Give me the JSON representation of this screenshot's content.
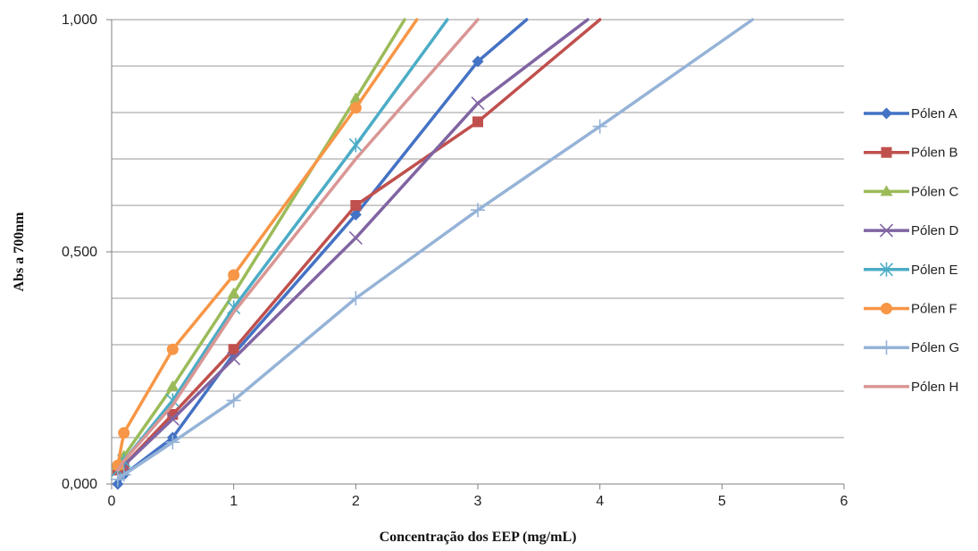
{
  "chart_data": {
    "type": "line",
    "title": "",
    "xlabel": "Concentração dos EEP (mg/mL)",
    "ylabel": "Abs a 700nm",
    "xlim": [
      0,
      6
    ],
    "ylim": [
      0,
      1
    ],
    "x_ticks": [
      "0",
      "1",
      "2",
      "3",
      "4",
      "5",
      "6"
    ],
    "y_ticks": [
      "0,000",
      "0,500",
      "1,000"
    ],
    "grid": "horizontal",
    "legend_position": "right",
    "series": [
      {
        "name": "Pólen A",
        "color": "#4472C4",
        "marker": "diamond",
        "x": [
          0.05,
          0.1,
          0.5,
          1,
          2,
          3,
          3.4
        ],
        "y": [
          0.0,
          0.02,
          0.1,
          0.28,
          0.58,
          0.91,
          1.0
        ]
      },
      {
        "name": "Pólen B",
        "color": "#C0504D",
        "marker": "square",
        "x": [
          0.05,
          0.1,
          0.5,
          1,
          2,
          3,
          4
        ],
        "y": [
          0.03,
          0.04,
          0.15,
          0.29,
          0.6,
          0.78,
          1.0
        ]
      },
      {
        "name": "Pólen C",
        "color": "#9BBB59",
        "marker": "triangle",
        "x": [
          0.05,
          0.1,
          0.5,
          1,
          2,
          2.4
        ],
        "y": [
          0.04,
          0.06,
          0.21,
          0.41,
          0.83,
          1.0
        ]
      },
      {
        "name": "Pólen D",
        "color": "#8064A2",
        "marker": "x",
        "x": [
          0.05,
          0.1,
          0.5,
          1,
          2,
          3,
          3.9
        ],
        "y": [
          0.03,
          0.04,
          0.14,
          0.27,
          0.53,
          0.82,
          1.0
        ]
      },
      {
        "name": "Pólen E",
        "color": "#4BACC6",
        "marker": "asterisk",
        "x": [
          0.05,
          0.1,
          0.5,
          1,
          2,
          2.75
        ],
        "y": [
          0.03,
          0.05,
          0.18,
          0.38,
          0.73,
          1.0
        ]
      },
      {
        "name": "Pólen F",
        "color": "#F79646",
        "marker": "circle",
        "x": [
          0.05,
          0.1,
          0.5,
          1,
          2,
          2.5
        ],
        "y": [
          0.04,
          0.11,
          0.29,
          0.45,
          0.81,
          1.0
        ]
      },
      {
        "name": "Pólen G",
        "color": "#95B3D7",
        "marker": "plus",
        "x": [
          0.05,
          0.1,
          0.5,
          1,
          2,
          3,
          4,
          5.25
        ],
        "y": [
          0.01,
          0.02,
          0.09,
          0.18,
          0.4,
          0.59,
          0.77,
          1.0
        ]
      },
      {
        "name": "Pólen H",
        "color": "#D99694",
        "marker": "none",
        "x": [
          0.05,
          0.1,
          0.5,
          1,
          2,
          3
        ],
        "y": [
          0.03,
          0.05,
          0.17,
          0.37,
          0.7,
          1.0
        ]
      }
    ]
  }
}
